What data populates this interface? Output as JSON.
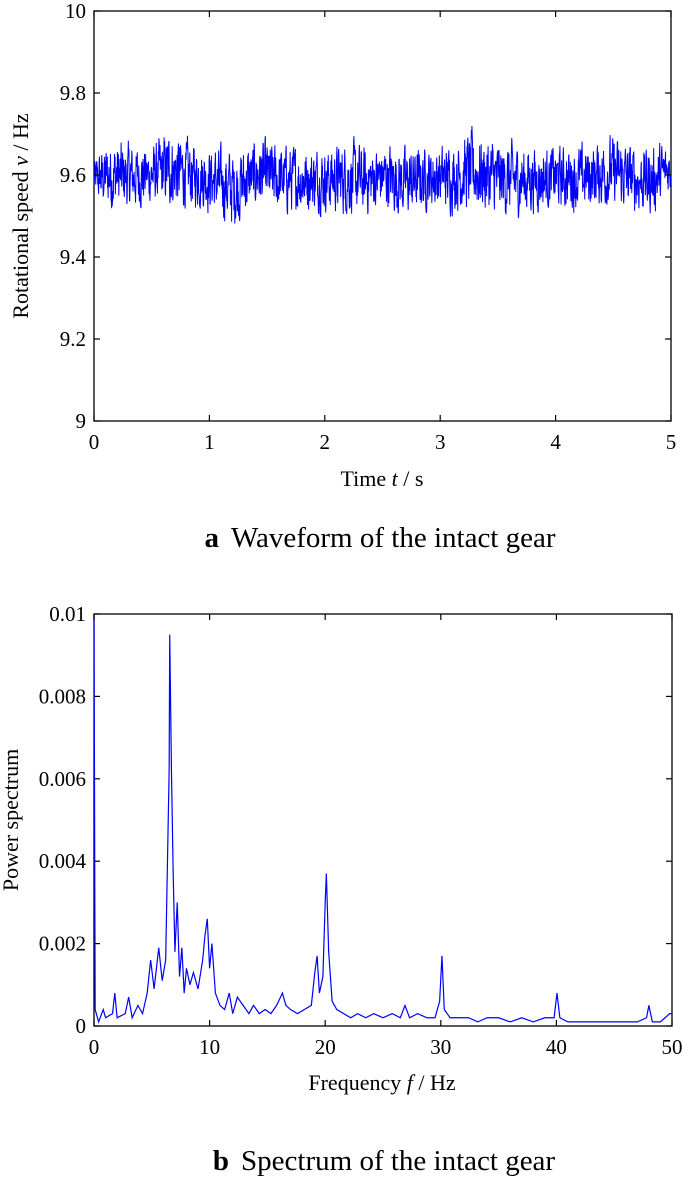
{
  "chart_data": [
    {
      "type": "line",
      "caption_letter": "a",
      "caption_text": "Waveform of the intact gear",
      "xlabel_prefix": "Time ",
      "xlabel_var": "t",
      "xlabel_suffix": " / s",
      "ylabel_prefix": "Rotational speed ",
      "ylabel_var": "v",
      "ylabel_suffix": " / Hz",
      "xlim": [
        0,
        5
      ],
      "ylim": [
        9,
        10
      ],
      "x_ticks": [
        "0",
        "1",
        "2",
        "3",
        "4",
        "5"
      ],
      "y_ticks": [
        "9",
        "9.2",
        "9.4",
        "9.6",
        "9.8",
        "10"
      ],
      "series_color": "#0000ff",
      "series": [
        {
          "x_range": [
            0,
            5
          ],
          "mean": 9.59,
          "min": 9.43,
          "max": 9.75,
          "approx_band": [
            9.47,
            9.71
          ],
          "envelope_maxima": [
            [
              0.0,
              9.66
            ],
            [
              0.15,
              9.73
            ],
            [
              0.3,
              9.71
            ],
            [
              0.5,
              9.7
            ],
            [
              0.66,
              9.75
            ],
            [
              0.85,
              9.71
            ],
            [
              1.05,
              9.7
            ],
            [
              1.25,
              9.7
            ],
            [
              1.45,
              9.72
            ],
            [
              1.6,
              9.71
            ],
            [
              1.8,
              9.7
            ],
            [
              2.05,
              9.7
            ],
            [
              2.2,
              9.72
            ],
            [
              2.4,
              9.7
            ],
            [
              2.55,
              9.71
            ],
            [
              2.75,
              9.7
            ],
            [
              2.95,
              9.7
            ],
            [
              3.1,
              9.71
            ],
            [
              3.27,
              9.75
            ],
            [
              3.5,
              9.72
            ],
            [
              3.7,
              9.71
            ],
            [
              3.9,
              9.7
            ],
            [
              4.1,
              9.7
            ],
            [
              4.3,
              9.71
            ],
            [
              4.47,
              9.73
            ],
            [
              4.7,
              9.7
            ],
            [
              4.9,
              9.71
            ],
            [
              5.0,
              9.69
            ]
          ],
          "envelope_minima": [
            [
              0.0,
              9.52
            ],
            [
              0.15,
              9.47
            ],
            [
              0.3,
              9.48
            ],
            [
              0.5,
              9.5
            ],
            [
              0.7,
              9.48
            ],
            [
              0.9,
              9.49
            ],
            [
              1.05,
              9.47
            ],
            [
              1.2,
              9.43
            ],
            [
              1.4,
              9.49
            ],
            [
              1.6,
              9.47
            ],
            [
              1.8,
              9.48
            ],
            [
              2.05,
              9.48
            ],
            [
              2.3,
              9.46
            ],
            [
              2.5,
              9.49
            ],
            [
              2.7,
              9.46
            ],
            [
              2.9,
              9.49
            ],
            [
              3.1,
              9.48
            ],
            [
              3.3,
              9.47
            ],
            [
              3.55,
              9.46
            ],
            [
              3.75,
              9.47
            ],
            [
              3.95,
              9.49
            ],
            [
              4.2,
              9.48
            ],
            [
              4.4,
              9.49
            ],
            [
              4.65,
              9.48
            ],
            [
              4.85,
              9.47
            ],
            [
              5.0,
              9.54
            ]
          ]
        }
      ]
    },
    {
      "type": "line",
      "caption_letter": "b",
      "caption_text": "Spectrum of the intact gear",
      "xlabel_prefix": "Frequency ",
      "xlabel_var": "f",
      "xlabel_suffix": " / Hz",
      "ylabel": "Power spectrum",
      "xlim": [
        0,
        50
      ],
      "ylim": [
        0,
        0.01
      ],
      "x_ticks": [
        "0",
        "10",
        "20",
        "30",
        "40",
        "50"
      ],
      "y_ticks": [
        "0",
        "0.002",
        "0.004",
        "0.006",
        "0.008",
        "0.01"
      ],
      "series_color": "#0000ff",
      "series": [
        {
          "baseline": 0.0002,
          "points": [
            [
              0.0,
              0.01
            ],
            [
              0.1,
              0.0004
            ],
            [
              0.4,
              0.0001
            ],
            [
              0.8,
              0.0004
            ],
            [
              1.0,
              0.0002
            ],
            [
              1.6,
              0.0003
            ],
            [
              1.8,
              0.0008
            ],
            [
              2.0,
              0.0002
            ],
            [
              2.7,
              0.0003
            ],
            [
              3.0,
              0.0007
            ],
            [
              3.3,
              0.0002
            ],
            [
              3.8,
              0.0005
            ],
            [
              4.2,
              0.0003
            ],
            [
              4.6,
              0.0008
            ],
            [
              4.9,
              0.0016
            ],
            [
              5.2,
              0.0009
            ],
            [
              5.4,
              0.0014
            ],
            [
              5.6,
              0.0019
            ],
            [
              5.9,
              0.0011
            ],
            [
              6.2,
              0.0016
            ],
            [
              6.5,
              0.0062
            ],
            [
              6.55,
              0.0095
            ],
            [
              6.7,
              0.0062
            ],
            [
              6.85,
              0.0037
            ],
            [
              7.0,
              0.0018
            ],
            [
              7.2,
              0.003
            ],
            [
              7.4,
              0.0012
            ],
            [
              7.6,
              0.0019
            ],
            [
              7.8,
              0.0008
            ],
            [
              8.0,
              0.0014
            ],
            [
              8.3,
              0.001
            ],
            [
              8.6,
              0.0013
            ],
            [
              9.0,
              0.0009
            ],
            [
              9.4,
              0.0016
            ],
            [
              9.6,
              0.0022
            ],
            [
              9.8,
              0.0026
            ],
            [
              10.0,
              0.0014
            ],
            [
              10.2,
              0.002
            ],
            [
              10.5,
              0.0008
            ],
            [
              10.9,
              0.0005
            ],
            [
              11.3,
              0.0004
            ],
            [
              11.7,
              0.0008
            ],
            [
              12.0,
              0.0003
            ],
            [
              12.4,
              0.0007
            ],
            [
              12.9,
              0.0005
            ],
            [
              13.4,
              0.0003
            ],
            [
              13.8,
              0.0005
            ],
            [
              14.3,
              0.0003
            ],
            [
              14.8,
              0.0004
            ],
            [
              15.3,
              0.0003
            ],
            [
              15.8,
              0.0005
            ],
            [
              16.3,
              0.0008
            ],
            [
              16.6,
              0.0005
            ],
            [
              17.0,
              0.0004
            ],
            [
              17.6,
              0.0003
            ],
            [
              18.2,
              0.0004
            ],
            [
              18.8,
              0.0005
            ],
            [
              19.1,
              0.0013
            ],
            [
              19.3,
              0.0017
            ],
            [
              19.5,
              0.0008
            ],
            [
              19.8,
              0.0012
            ],
            [
              20.0,
              0.003
            ],
            [
              20.1,
              0.0037
            ],
            [
              20.3,
              0.0018
            ],
            [
              20.6,
              0.0006
            ],
            [
              21.0,
              0.0004
            ],
            [
              21.6,
              0.0003
            ],
            [
              22.2,
              0.0002
            ],
            [
              22.8,
              0.0003
            ],
            [
              23.5,
              0.0002
            ],
            [
              24.2,
              0.0003
            ],
            [
              25.0,
              0.0002
            ],
            [
              25.8,
              0.0003
            ],
            [
              26.5,
              0.0002
            ],
            [
              26.9,
              0.0005
            ],
            [
              27.3,
              0.0002
            ],
            [
              28.0,
              0.0003
            ],
            [
              28.8,
              0.0002
            ],
            [
              29.5,
              0.0002
            ],
            [
              29.9,
              0.0006
            ],
            [
              30.1,
              0.0017
            ],
            [
              30.3,
              0.0004
            ],
            [
              30.8,
              0.0002
            ],
            [
              31.6,
              0.0002
            ],
            [
              32.4,
              0.0002
            ],
            [
              33.2,
              0.0001
            ],
            [
              34.0,
              0.0002
            ],
            [
              35.0,
              0.0002
            ],
            [
              36.0,
              0.0001
            ],
            [
              37.0,
              0.0002
            ],
            [
              38.0,
              0.0001
            ],
            [
              39.0,
              0.0002
            ],
            [
              39.8,
              0.0002
            ],
            [
              40.05,
              0.0008
            ],
            [
              40.3,
              0.0002
            ],
            [
              41.0,
              0.0001
            ],
            [
              42.0,
              0.0001
            ],
            [
              43.0,
              0.0001
            ],
            [
              44.0,
              0.0001
            ],
            [
              45.0,
              0.0001
            ],
            [
              46.0,
              0.0001
            ],
            [
              47.0,
              0.0001
            ],
            [
              47.8,
              0.0002
            ],
            [
              48.0,
              0.0005
            ],
            [
              48.3,
              0.0001
            ],
            [
              49.0,
              0.0001
            ],
            [
              49.8,
              0.0003
            ],
            [
              50.0,
              0.0003
            ]
          ]
        }
      ]
    }
  ]
}
